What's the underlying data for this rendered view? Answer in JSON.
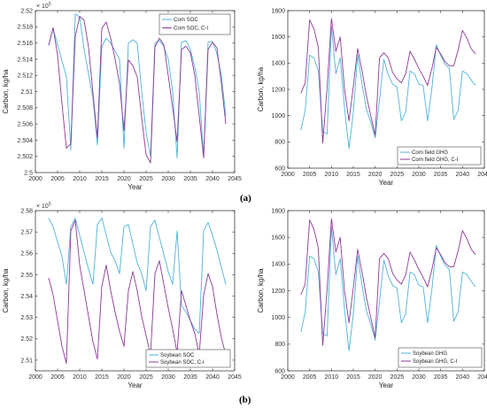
{
  "panel_labels": [
    "(a)",
    "(b)"
  ],
  "chart_data": [
    {
      "type": "line",
      "xlabel": "Year",
      "ylabel": "Carbon, kg/ha",
      "y_exponent": "× 10^5",
      "xlim": [
        2000,
        2045
      ],
      "ylim": [
        2.5,
        2.52
      ],
      "xticks": [
        2000,
        2005,
        2010,
        2015,
        2020,
        2025,
        2030,
        2035,
        2040,
        2045
      ],
      "yticks": [
        2.5,
        2.502,
        2.504,
        2.506,
        2.508,
        2.51,
        2.512,
        2.514,
        2.516,
        2.518,
        2.52
      ],
      "ytick_labels": [
        "2.5",
        "2.502",
        "2.504",
        "2.506",
        "2.508",
        "2.51",
        "2.512",
        "2.514",
        "2.516",
        "2.518",
        "2.52"
      ],
      "legend_position": "top-right",
      "series": [
        {
          "name": "Corn SOC",
          "color": "#4fb3d9",
          "x": [
            2003,
            2004,
            2005,
            2006,
            2007,
            2008,
            2009,
            2010,
            2011,
            2012,
            2013,
            2014,
            2015,
            2016,
            2017,
            2018,
            2019,
            2020,
            2021,
            2022,
            2023,
            2024,
            2025,
            2026,
            2027,
            2028,
            2029,
            2030,
            2031,
            2032,
            2033,
            2034,
            2035,
            2036,
            2037,
            2038,
            2039,
            2040,
            2041,
            2042,
            2043
          ],
          "y": [
            2.5157,
            2.5178,
            2.5158,
            2.5138,
            2.5118,
            2.5028,
            2.5196,
            2.5192,
            2.5152,
            2.5122,
            2.5092,
            2.5034,
            2.5156,
            2.5166,
            2.516,
            2.515,
            2.514,
            2.503,
            2.516,
            2.5164,
            2.516,
            2.51,
            2.505,
            2.502,
            2.516,
            2.5163,
            2.5156,
            2.514,
            2.51,
            2.5018,
            2.5161,
            2.5163,
            2.5152,
            2.513,
            2.51,
            2.502,
            2.5161,
            2.5162,
            2.5147,
            2.512,
            2.507
          ]
        },
        {
          "name": "Corn SOC, C-I",
          "color": "#8b3a96",
          "x": [
            2003,
            2004,
            2005,
            2006,
            2007,
            2008,
            2009,
            2010,
            2011,
            2012,
            2013,
            2014,
            2015,
            2016,
            2017,
            2018,
            2019,
            2020,
            2021,
            2022,
            2023,
            2024,
            2025,
            2026,
            2027,
            2028,
            2029,
            2030,
            2031,
            2032,
            2033,
            2034,
            2035,
            2036,
            2037,
            2038,
            2039,
            2040,
            2041,
            2042,
            2043
          ],
          "y": [
            2.5157,
            2.5179,
            2.5145,
            2.5085,
            2.503,
            2.5036,
            2.5168,
            2.5193,
            2.5188,
            2.5155,
            2.5098,
            2.5043,
            2.5178,
            2.5186,
            2.5166,
            2.514,
            2.511,
            2.5052,
            2.5139,
            2.5132,
            2.5118,
            2.5068,
            2.5022,
            2.5012,
            2.5155,
            2.5166,
            2.5158,
            2.512,
            2.508,
            2.5038,
            2.5152,
            2.5156,
            2.5148,
            2.512,
            2.507,
            2.5018,
            2.5152,
            2.5161,
            2.5154,
            2.511,
            2.506
          ]
        }
      ]
    },
    {
      "type": "line",
      "xlabel": "Year",
      "ylabel": "Carbon, kg/ha",
      "xlim": [
        2000,
        2045
      ],
      "ylim": [
        600,
        1800
      ],
      "xticks": [
        2000,
        2005,
        2010,
        2015,
        2020,
        2025,
        2030,
        2035,
        2040,
        2045
      ],
      "yticks": [
        600,
        800,
        1000,
        1200,
        1400,
        1600,
        1800
      ],
      "ytick_labels": [
        "600",
        "800",
        "1000",
        "1200",
        "1400",
        "1600",
        "1800"
      ],
      "legend_position": "bottom-right",
      "series": [
        {
          "name": "Corn field GHG",
          "color": "#4fb3d9",
          "x": [
            2003,
            2004,
            2005,
            2006,
            2007,
            2008,
            2009,
            2010,
            2011,
            2012,
            2013,
            2014,
            2015,
            2016,
            2017,
            2018,
            2019,
            2020,
            2021,
            2022,
            2023,
            2024,
            2025,
            2026,
            2027,
            2028,
            2029,
            2030,
            2031,
            2032,
            2033,
            2034,
            2035,
            2036,
            2037,
            2038,
            2039,
            2040,
            2041,
            2042,
            2043
          ],
          "y": [
            890,
            1040,
            1460,
            1440,
            1340,
            880,
            860,
            1680,
            1320,
            1440,
            1060,
            750,
            1020,
            1460,
            1240,
            1050,
            950,
            830,
            1120,
            1430,
            1310,
            1240,
            1220,
            960,
            1030,
            1340,
            1320,
            1240,
            1230,
            960,
            1210,
            1540,
            1460,
            1390,
            1360,
            970,
            1040,
            1340,
            1320,
            1270,
            1230
          ]
        },
        {
          "name": "Corn field GHG, C-I",
          "color": "#8b3a96",
          "x": [
            2003,
            2004,
            2005,
            2006,
            2007,
            2008,
            2009,
            2010,
            2011,
            2012,
            2013,
            2014,
            2015,
            2016,
            2017,
            2018,
            2019,
            2020,
            2021,
            2022,
            2023,
            2024,
            2025,
            2026,
            2027,
            2028,
            2029,
            2030,
            2031,
            2032,
            2033,
            2034,
            2035,
            2036,
            2037,
            2038,
            2039,
            2040,
            2041,
            2042,
            2043
          ],
          "y": [
            1170,
            1250,
            1730,
            1660,
            1520,
            790,
            1210,
            1740,
            1490,
            1600,
            1200,
            960,
            1220,
            1510,
            1340,
            1150,
            1000,
            850,
            1440,
            1480,
            1440,
            1330,
            1280,
            1250,
            1320,
            1490,
            1430,
            1360,
            1300,
            1230,
            1360,
            1520,
            1470,
            1410,
            1380,
            1380,
            1500,
            1650,
            1590,
            1510,
            1470
          ]
        }
      ]
    },
    {
      "type": "line",
      "xlabel": "Year",
      "ylabel": "Carbon, kg/ha",
      "y_exponent": "× 10^5",
      "xlim": [
        2000,
        2045
      ],
      "ylim": [
        2.505,
        2.58
      ],
      "xticks": [
        2000,
        2005,
        2010,
        2015,
        2020,
        2025,
        2030,
        2035,
        2040,
        2045
      ],
      "yticks": [
        2.51,
        2.52,
        2.53,
        2.54,
        2.55,
        2.56,
        2.57,
        2.58
      ],
      "ytick_labels": [
        "2.51",
        "2.52",
        "2.53",
        "2.54",
        "2.55",
        "2.56",
        "2.57",
        "2.58"
      ],
      "legend_position": "bottom-right",
      "series": [
        {
          "name": "Soybean SOC",
          "color": "#4fb3d9",
          "x": [
            2003,
            2004,
            2005,
            2006,
            2007,
            2008,
            2009,
            2010,
            2011,
            2012,
            2013,
            2014,
            2015,
            2016,
            2017,
            2018,
            2019,
            2020,
            2021,
            2022,
            2023,
            2024,
            2025,
            2026,
            2027,
            2028,
            2029,
            2030,
            2031,
            2032,
            2033,
            2034,
            2035,
            2036,
            2037,
            2038,
            2039,
            2040,
            2041,
            2042,
            2043
          ],
          "y": [
            2.5765,
            2.5725,
            2.5655,
            2.5585,
            2.5455,
            2.5725,
            2.5765,
            2.5685,
            2.5605,
            2.5525,
            2.5455,
            2.5735,
            2.5765,
            2.5685,
            2.5605,
            2.5565,
            2.5505,
            2.5725,
            2.5735,
            2.5645,
            2.5555,
            2.5505,
            2.5425,
            2.5725,
            2.5755,
            2.5675,
            2.5595,
            2.5515,
            2.5455,
            2.5705,
            2.5355,
            2.5325,
            2.5285,
            2.5245,
            2.5225,
            2.5705,
            2.5745,
            2.5685,
            2.5615,
            2.5535,
            2.5455
          ]
        },
        {
          "name": "Soybean SOC, C-I",
          "color": "#8b3a96",
          "x": [
            2003,
            2004,
            2005,
            2006,
            2007,
            2008,
            2009,
            2010,
            2011,
            2012,
            2013,
            2014,
            2015,
            2016,
            2017,
            2018,
            2019,
            2020,
            2021,
            2022,
            2023,
            2024,
            2025,
            2026,
            2027,
            2028,
            2029,
            2030,
            2031,
            2032,
            2033,
            2034,
            2035,
            2036,
            2037,
            2038,
            2039,
            2040,
            2041,
            2042,
            2043
          ],
          "y": [
            2.5485,
            2.5405,
            2.5285,
            2.5165,
            2.5085,
            2.5705,
            2.5755,
            2.5545,
            2.5425,
            2.5305,
            2.5185,
            2.5105,
            2.5445,
            2.5545,
            2.5425,
            2.5325,
            2.5235,
            2.5165,
            2.5425,
            2.5515,
            2.5425,
            2.5305,
            2.5215,
            2.5125,
            2.5505,
            2.5565,
            2.5455,
            2.5345,
            2.5245,
            2.5135,
            2.5425,
            2.5355,
            2.5285,
            2.5225,
            2.5125,
            2.5405,
            2.5505,
            2.5445,
            2.5315,
            2.5205,
            2.5125
          ]
        }
      ]
    },
    {
      "type": "line",
      "xlabel": "Year",
      "ylabel": "Carbon, kg/ha",
      "xlim": [
        2000,
        2045
      ],
      "ylim": [
        600,
        1800
      ],
      "xticks": [
        2000,
        2005,
        2010,
        2015,
        2020,
        2025,
        2030,
        2035,
        2040,
        2045
      ],
      "yticks": [
        600,
        800,
        1000,
        1200,
        1400,
        1600,
        1800
      ],
      "ytick_labels": [
        "600",
        "800",
        "1000",
        "1200",
        "1400",
        "1600",
        "1800"
      ],
      "legend_position": "bottom-right",
      "series": [
        {
          "name": "Soybean GHG",
          "color": "#4fb3d9",
          "x": [
            2003,
            2004,
            2005,
            2006,
            2007,
            2008,
            2009,
            2010,
            2011,
            2012,
            2013,
            2014,
            2015,
            2016,
            2017,
            2018,
            2019,
            2020,
            2021,
            2022,
            2023,
            2024,
            2025,
            2026,
            2027,
            2028,
            2029,
            2030,
            2031,
            2032,
            2033,
            2034,
            2035,
            2036,
            2037,
            2038,
            2039,
            2040,
            2041,
            2042,
            2043
          ],
          "y": [
            890,
            1040,
            1460,
            1440,
            1340,
            880,
            860,
            1680,
            1320,
            1440,
            1060,
            750,
            1020,
            1460,
            1240,
            1050,
            950,
            830,
            1120,
            1430,
            1310,
            1240,
            1220,
            960,
            1030,
            1340,
            1320,
            1240,
            1230,
            960,
            1210,
            1540,
            1460,
            1390,
            1360,
            970,
            1040,
            1340,
            1320,
            1270,
            1230
          ]
        },
        {
          "name": "Soybean GHG, C-I",
          "color": "#8b3a96",
          "x": [
            2003,
            2004,
            2005,
            2006,
            2007,
            2008,
            2009,
            2010,
            2011,
            2012,
            2013,
            2014,
            2015,
            2016,
            2017,
            2018,
            2019,
            2020,
            2021,
            2022,
            2023,
            2024,
            2025,
            2026,
            2027,
            2028,
            2029,
            2030,
            2031,
            2032,
            2033,
            2034,
            2035,
            2036,
            2037,
            2038,
            2039,
            2040,
            2041,
            2042,
            2043
          ],
          "y": [
            1170,
            1250,
            1730,
            1660,
            1520,
            790,
            1210,
            1740,
            1490,
            1600,
            1200,
            960,
            1220,
            1510,
            1340,
            1150,
            1000,
            850,
            1440,
            1480,
            1440,
            1330,
            1280,
            1250,
            1320,
            1490,
            1430,
            1360,
            1300,
            1230,
            1360,
            1520,
            1470,
            1410,
            1380,
            1380,
            1500,
            1650,
            1590,
            1510,
            1470
          ]
        }
      ]
    }
  ]
}
